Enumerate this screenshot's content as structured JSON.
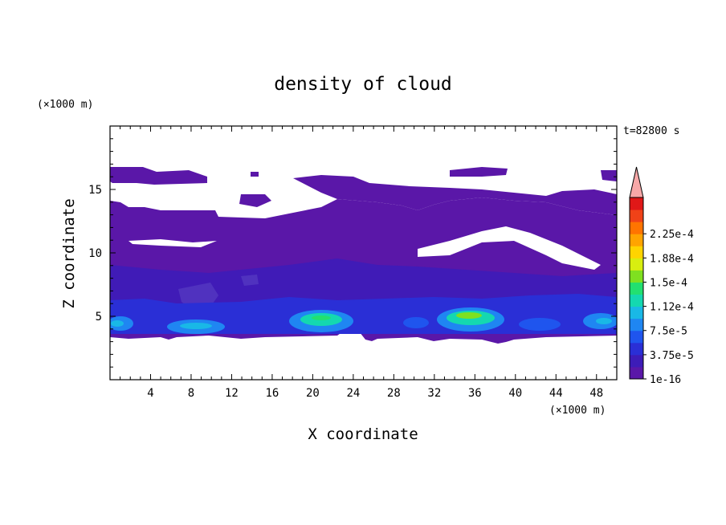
{
  "chart_data": {
    "type": "heatmap",
    "title": "density of cloud",
    "xlabel": "X coordinate",
    "ylabel": "Z coordinate",
    "x_unit": "(×1000 m)",
    "y_unit": "(×1000 m)",
    "time_label": "t=82800 s",
    "xlim": [
      0,
      50
    ],
    "ylim": [
      0,
      20
    ],
    "x_ticks": [
      4,
      8,
      12,
      16,
      20,
      24,
      28,
      32,
      36,
      40,
      44,
      48
    ],
    "y_ticks": [
      5,
      10,
      15
    ],
    "colorbar": {
      "labels": [
        "1e-16",
        "3.75e-5",
        "7.5e-5",
        "1.12e-4",
        "1.5e-4",
        "1.88e-4",
        "2.25e-4"
      ],
      "colors": [
        "#5a17a8",
        "#3d1cb8",
        "#2a2fd6",
        "#1f55ee",
        "#1f86f2",
        "#19b8e6",
        "#14d8b0",
        "#22e070",
        "#7fe020",
        "#d8ee10",
        "#ffd400",
        "#ffa400",
        "#ff7400",
        "#f04218",
        "#e01818"
      ],
      "extend_color": "#f7a8a8"
    },
    "regions": {
      "cloud_layer_upper": {
        "x": [
          0,
          50
        ],
        "z": [
          10.5,
          16.5
        ],
        "level": "1e-16"
      },
      "cloud_layer_lower": {
        "x": [
          0,
          50
        ],
        "z": [
          3.5,
          10.5
        ],
        "level": "1e-16"
      },
      "cores": [
        {
          "x": [
            0,
            3
          ],
          "z": [
            4.0,
            5.5
          ],
          "max_level": "7.5e-5"
        },
        {
          "x": [
            5,
            11
          ],
          "z": [
            3.8,
            5.2
          ],
          "max_level": "7.5e-5"
        },
        {
          "x": [
            18,
            25
          ],
          "z": [
            3.8,
            6.0
          ],
          "max_level": "1.12e-4"
        },
        {
          "x": [
            29,
            31
          ],
          "z": [
            4.0,
            5.0
          ],
          "max_level": "3.75e-5"
        },
        {
          "x": [
            33,
            40
          ],
          "z": [
            3.8,
            6.0
          ],
          "max_level": "1.5e-4"
        },
        {
          "x": [
            42,
            46
          ],
          "z": [
            4.0,
            5.2
          ],
          "max_level": "3.75e-5"
        },
        {
          "x": [
            47,
            50
          ],
          "z": [
            4.0,
            5.5
          ],
          "max_level": "7.5e-5"
        }
      ]
    }
  }
}
